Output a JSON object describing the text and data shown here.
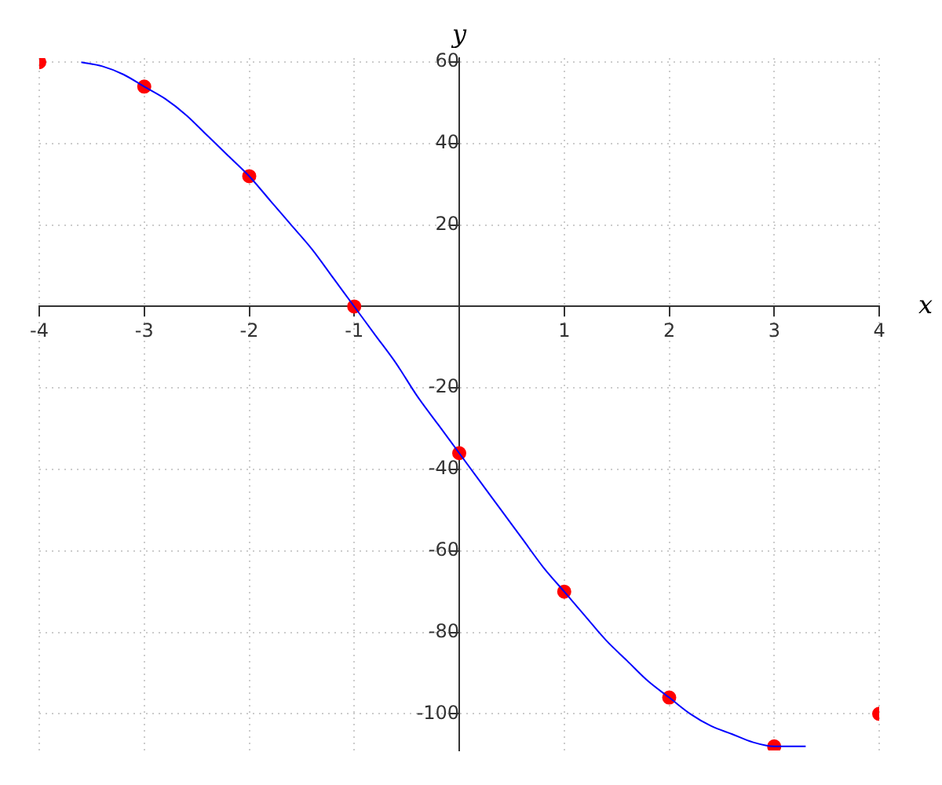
{
  "chart_data": {
    "type": "scatter",
    "xlabel": "x",
    "ylabel": "y",
    "xlim": [
      -4,
      4
    ],
    "ylim": [
      -109,
      61
    ],
    "xticks": [
      -4,
      -3,
      -2,
      -1,
      1,
      2,
      3,
      4
    ],
    "yticks": [
      -100,
      -80,
      -60,
      -40,
      -20,
      20,
      40,
      60
    ],
    "grid": true,
    "legend": false,
    "series": [
      {
        "type": "line",
        "color": "#0000ff",
        "marker": "none",
        "line_style": "solid",
        "x": [
          -3.6,
          -3.4,
          -3.2,
          -3,
          -2.8,
          -2.6,
          -2.4,
          -2.2,
          -2,
          -1.8,
          -1.6,
          -1.4,
          -1.2,
          -1,
          -0.8,
          -0.6,
          -0.4,
          -0.2,
          0,
          0.2,
          0.4,
          0.6,
          0.8,
          1,
          1.2,
          1.4,
          1.6,
          1.8,
          2,
          2.2,
          2.4,
          2.6,
          2.8,
          3,
          3.2,
          3.3
        ],
        "values": [
          60,
          59,
          57,
          54,
          51,
          47,
          42,
          37,
          32,
          26,
          20,
          14,
          7,
          0,
          -7,
          -14,
          -22,
          -29,
          -36,
          -43,
          -50,
          -57,
          -64,
          -70,
          -76,
          -82,
          -87,
          -92,
          -96,
          -100,
          -103,
          -105,
          -107,
          -108,
          -108,
          -108
        ]
      },
      {
        "color": "#ff0000",
        "marker": "circle",
        "x": [
          -4,
          -3,
          -2,
          -1,
          0,
          1,
          2,
          3,
          4
        ],
        "values": [
          60,
          54,
          32,
          0,
          -36,
          -70,
          -96,
          -108,
          -100
        ]
      }
    ]
  }
}
